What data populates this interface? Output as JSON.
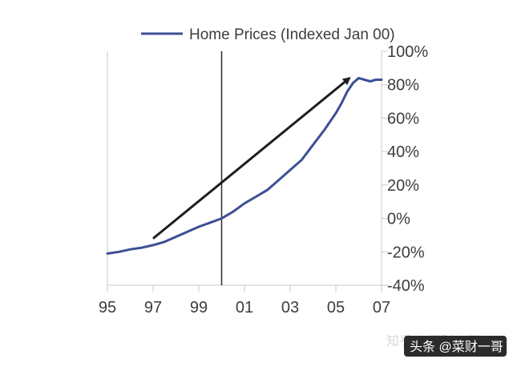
{
  "chart_data": {
    "type": "line",
    "title": "",
    "xlabel": "",
    "ylabel": "",
    "x_ticks": [
      "95",
      "97",
      "99",
      "01",
      "03",
      "05",
      "07"
    ],
    "y_ticks": [
      "-40%",
      "-20%",
      "0%",
      "20%",
      "40%",
      "60%",
      "80%",
      "100%"
    ],
    "xlim": [
      1995,
      2007
    ],
    "ylim": [
      -40,
      100
    ],
    "y_unit": "%",
    "y_axis_side": "right",
    "grid": false,
    "legend_position": "top-right",
    "vertical_reference_line_x": 2000,
    "series": [
      {
        "name": "Home Prices (Indexed Jan 00)",
        "color": "#3c4f95",
        "x": [
          1995.0,
          1995.5,
          1996.0,
          1996.5,
          1997.0,
          1997.5,
          1998.0,
          1998.5,
          1999.0,
          1999.5,
          2000.0,
          2000.5,
          2001.0,
          2001.5,
          2002.0,
          2002.5,
          2003.0,
          2003.5,
          2004.0,
          2004.5,
          2005.0,
          2005.25,
          2005.5,
          2005.75,
          2006.0,
          2006.25,
          2006.5,
          2006.75,
          2007.0
        ],
        "y": [
          -21,
          -20,
          -18.5,
          -17.5,
          -16,
          -14,
          -11,
          -8,
          -5,
          -2.5,
          0,
          4,
          9,
          13,
          17,
          23,
          29,
          35,
          44,
          53,
          63,
          69,
          76,
          81,
          84,
          83,
          82,
          83,
          83
        ]
      }
    ],
    "annotation_arrow": {
      "from": [
        1997.0,
        -12
      ],
      "to": [
        2005.6,
        84
      ]
    }
  },
  "watermark": {
    "faint_text": "知乎 @菜财一哥",
    "badge_text": "头条 @菜财一哥"
  }
}
